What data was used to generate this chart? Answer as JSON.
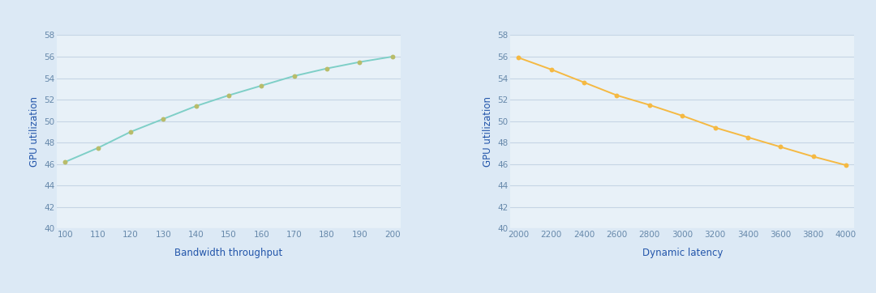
{
  "chart1": {
    "x": [
      100,
      110,
      120,
      130,
      140,
      150,
      160,
      170,
      180,
      190,
      200
    ],
    "y": [
      46.2,
      47.5,
      49.0,
      50.2,
      51.4,
      52.4,
      53.3,
      54.2,
      54.9,
      55.5,
      56.0
    ],
    "line_color": "#7ecfc7",
    "marker_color": "#b8bc6a",
    "xlabel": "Bandwidth throughput",
    "ylabel": "GPU utilization",
    "ylim": [
      40,
      58
    ],
    "yticks": [
      40,
      42,
      44,
      46,
      48,
      50,
      52,
      54,
      56,
      58
    ],
    "xticks": [
      100,
      110,
      120,
      130,
      140,
      150,
      160,
      170,
      180,
      190,
      200
    ]
  },
  "chart2": {
    "x": [
      2000,
      2200,
      2400,
      2600,
      2800,
      3000,
      3200,
      3400,
      3600,
      3800,
      4000
    ],
    "y": [
      55.9,
      54.8,
      53.6,
      52.4,
      51.5,
      50.5,
      49.4,
      48.5,
      47.6,
      46.7,
      45.9
    ],
    "line_color": "#f5b942",
    "marker_color": "#f5b942",
    "xlabel": "Dynamic latency",
    "ylabel": "GPU utilization",
    "ylim": [
      40,
      58
    ],
    "yticks": [
      40,
      42,
      44,
      46,
      48,
      50,
      52,
      54,
      56,
      58
    ],
    "xticks": [
      2000,
      2200,
      2400,
      2600,
      2800,
      3000,
      3200,
      3400,
      3600,
      3800,
      4000
    ]
  },
  "background_color": "#dce9f5",
  "plot_bg_color": "#e8f1f8",
  "grid_color": "#c5d5e5",
  "tick_label_color": "#6688aa",
  "axis_label_color": "#2255aa",
  "tick_fontsize": 7.5,
  "label_fontsize": 8.5
}
